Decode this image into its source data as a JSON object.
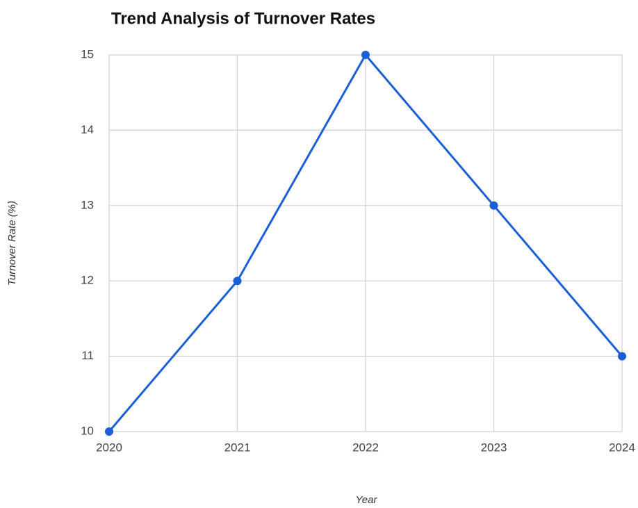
{
  "chart_data": {
    "type": "line",
    "title": "Trend Analysis of Turnover Rates",
    "x_label": "Year",
    "y_label": "Turnover Rate (%)",
    "x": [
      2020,
      2021,
      2022,
      2023,
      2024
    ],
    "series": [
      {
        "name": "Turnover Rate",
        "color": "#1a5fd6",
        "values": [
          10,
          12,
          15,
          13,
          11
        ]
      }
    ],
    "xlim": [
      2020,
      2024
    ],
    "xticks": [
      2020,
      2021,
      2022,
      2023,
      2024
    ],
    "ylim": [
      10,
      15
    ],
    "yticks": [
      10,
      11,
      12,
      13,
      14,
      15
    ],
    "grid": true
  }
}
